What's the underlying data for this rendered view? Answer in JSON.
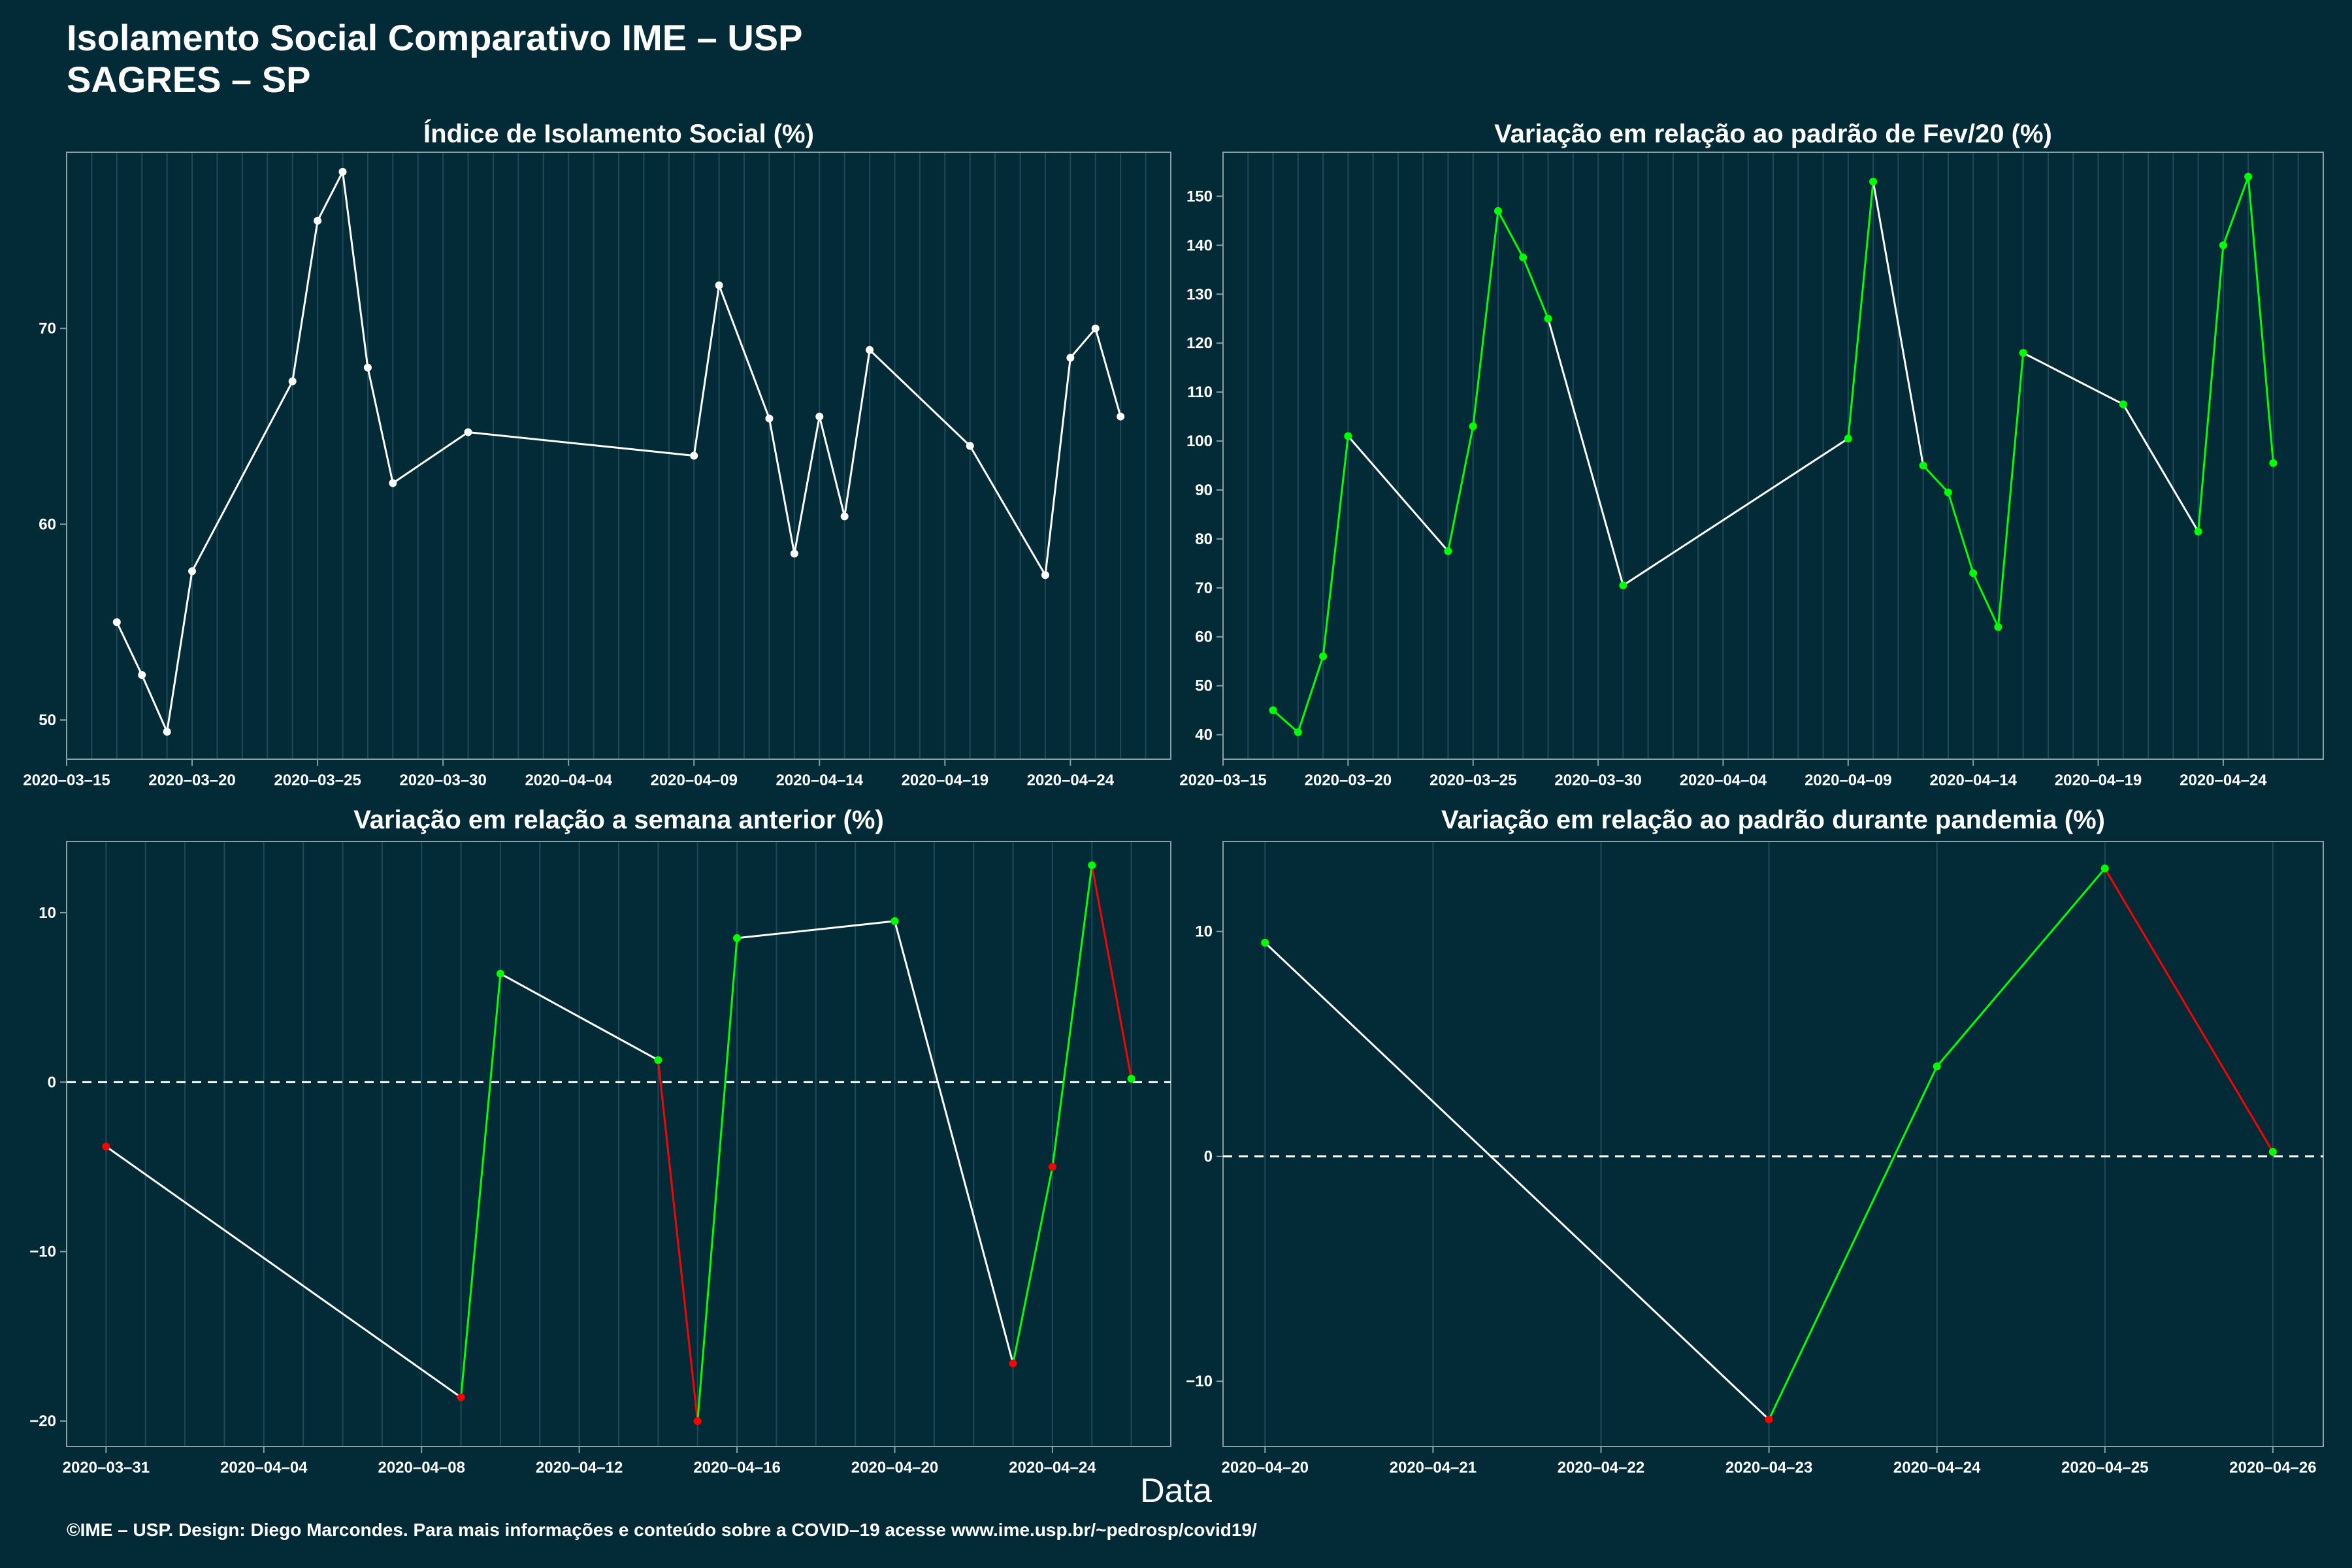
{
  "header": {
    "title_line1": "Isolamento Social Comparativo IME – USP",
    "title_line2": "SAGRES – SP"
  },
  "x_axis_label": "Data",
  "footer": "©IME – USP. Design: Diego Marcondes. Para mais informações e conteúdo sobre a COVID–19 acesse www.ime.usp.br/~pedrosp/covid19/",
  "colors": {
    "background": "#022b37",
    "up": "#00ff00",
    "down": "#ff0000",
    "neutral": "#ffffff",
    "grid": "#1f4a57"
  },
  "chart_data": [
    {
      "type": "line",
      "title": "Índice de Isolamento Social (%)",
      "xlabel": "",
      "ylabel": "",
      "x": [
        "2020-03-17",
        "2020-03-18",
        "2020-03-19",
        "2020-03-20",
        "2020-03-24",
        "2020-03-25",
        "2020-03-26",
        "2020-03-27",
        "2020-03-28",
        "2020-03-31",
        "2020-04-09",
        "2020-04-10",
        "2020-04-12",
        "2020-04-13",
        "2020-04-14",
        "2020-04-15",
        "2020-04-16",
        "2020-04-20",
        "2020-04-23",
        "2020-04-24",
        "2020-04-25",
        "2020-04-26"
      ],
      "values": [
        55.0,
        52.3,
        49.4,
        57.6,
        67.3,
        75.5,
        78.0,
        68.0,
        62.1,
        64.7,
        63.5,
        72.2,
        65.4,
        58.5,
        65.5,
        60.4,
        68.9,
        64.0,
        57.4,
        68.5,
        70.0,
        65.5
      ],
      "xlim": [
        "2020-03-15",
        "2020-04-28"
      ],
      "ylim": [
        48,
        79
      ],
      "yticks": [
        50,
        60,
        70
      ],
      "xticks": [
        "2020-03-15",
        "2020-03-20",
        "2020-03-25",
        "2020-03-30",
        "2020-04-04",
        "2020-04-09",
        "2020-04-14",
        "2020-04-19",
        "2020-04-24"
      ],
      "dashed_zero": false,
      "color_mode": "white",
      "grid": true
    },
    {
      "type": "line",
      "title": "Variação em relação ao padrão de Fev/20 (%)",
      "xlabel": "",
      "ylabel": "",
      "x": [
        "2020-03-17",
        "2020-03-18",
        "2020-03-19",
        "2020-03-20",
        "2020-03-24",
        "2020-03-25",
        "2020-03-26",
        "2020-03-27",
        "2020-03-28",
        "2020-03-31",
        "2020-04-09",
        "2020-04-10",
        "2020-04-12",
        "2020-04-13",
        "2020-04-14",
        "2020-04-15",
        "2020-04-16",
        "2020-04-20",
        "2020-04-23",
        "2020-04-24",
        "2020-04-25",
        "2020-04-26"
      ],
      "values": [
        45,
        40.5,
        56,
        101,
        77.5,
        103,
        147,
        137.5,
        125,
        70.5,
        100.5,
        153,
        95,
        89.5,
        73,
        62,
        118,
        107.5,
        81.5,
        140,
        154,
        95.5
      ],
      "xlim": [
        "2020-03-15",
        "2020-04-28"
      ],
      "ylim": [
        35,
        159
      ],
      "yticks": [
        40,
        50,
        60,
        70,
        80,
        90,
        100,
        110,
        120,
        130,
        140,
        150
      ],
      "xticks": [
        "2020-03-15",
        "2020-03-20",
        "2020-03-25",
        "2020-03-30",
        "2020-04-04",
        "2020-04-09",
        "2020-04-14",
        "2020-04-19",
        "2020-04-24"
      ],
      "dashed_zero": false,
      "color_mode": "green-consecutive",
      "grid": true
    },
    {
      "type": "line",
      "title": "Variação em relação a semana anterior (%)",
      "xlabel": "",
      "ylabel": "",
      "x": [
        "2020-03-31",
        "2020-04-09",
        "2020-04-10",
        "2020-04-14",
        "2020-04-15",
        "2020-04-16",
        "2020-04-20",
        "2020-04-23",
        "2020-04-24",
        "2020-04-25",
        "2020-04-26"
      ],
      "values": [
        -3.8,
        -18.6,
        6.4,
        1.3,
        -20.0,
        8.5,
        9.5,
        -16.6,
        -5.0,
        12.8,
        0.2
      ],
      "xlim": [
        "2020-03-30",
        "2020-04-27"
      ],
      "ylim": [
        -21.5,
        14.2
      ],
      "yticks": [
        -20,
        -10,
        0,
        10
      ],
      "xticks": [
        "2020-03-31",
        "2020-04-04",
        "2020-04-08",
        "2020-04-12",
        "2020-04-16",
        "2020-04-20",
        "2020-04-24"
      ],
      "dashed_zero": true,
      "color_mode": "sign-consecutive",
      "grid": true
    },
    {
      "type": "line",
      "title": "Variação em relação ao padrão durante pandemia (%)",
      "xlabel": "",
      "ylabel": "",
      "x": [
        "2020-04-20",
        "2020-04-23",
        "2020-04-24",
        "2020-04-25",
        "2020-04-26"
      ],
      "values": [
        9.5,
        -11.7,
        4.0,
        12.8,
        0.2
      ],
      "xlim": [
        "2020-04-19.75",
        "2020-04-26.3"
      ],
      "ylim": [
        -12.9,
        14.0
      ],
      "yticks": [
        -10,
        0,
        10
      ],
      "xticks": [
        "2020-04-20",
        "2020-04-21",
        "2020-04-22",
        "2020-04-23",
        "2020-04-24",
        "2020-04-25",
        "2020-04-26"
      ],
      "dashed_zero": true,
      "color_mode": "sign-consecutive",
      "grid": true
    }
  ]
}
